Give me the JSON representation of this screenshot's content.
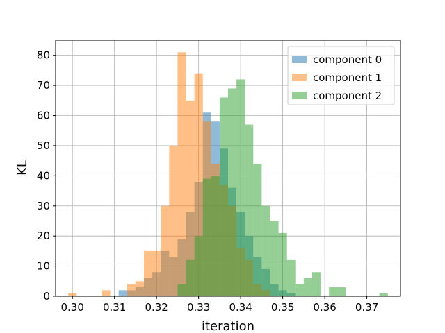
{
  "chart_data": {
    "type": "histogram",
    "title": "",
    "xlabel": "iteration",
    "ylabel": "KL",
    "xlim": [
      0.296,
      0.378
    ],
    "ylim": [
      0,
      85
    ],
    "grid": true,
    "legend_placement": "top-right",
    "bin_width": 0.002,
    "x_ticks": [
      0.3,
      0.31,
      0.32,
      0.33,
      0.34,
      0.35,
      0.36,
      0.37
    ],
    "x_tick_labels": [
      "0.30",
      "0.31",
      "0.32",
      "0.33",
      "0.34",
      "0.35",
      "0.36",
      "0.37"
    ],
    "y_ticks": [
      0,
      10,
      20,
      30,
      40,
      50,
      60,
      70,
      80
    ],
    "y_tick_labels": [
      "0",
      "10",
      "20",
      "30",
      "40",
      "50",
      "60",
      "70",
      "80"
    ],
    "series": [
      {
        "name": "component 0",
        "color": "#1f77b4",
        "opacity": 0.5,
        "bins": [
          [
            0.311,
            2
          ],
          [
            0.313,
            2
          ],
          [
            0.315,
            3
          ],
          [
            0.317,
            6
          ],
          [
            0.319,
            8
          ],
          [
            0.321,
            15
          ],
          [
            0.323,
            13
          ],
          [
            0.325,
            19
          ],
          [
            0.327,
            28
          ],
          [
            0.329,
            38
          ],
          [
            0.331,
            61
          ],
          [
            0.333,
            58
          ],
          [
            0.335,
            49
          ],
          [
            0.337,
            36
          ],
          [
            0.339,
            28
          ],
          [
            0.341,
            20
          ],
          [
            0.343,
            13
          ],
          [
            0.345,
            9
          ],
          [
            0.347,
            4
          ],
          [
            0.349,
            2
          ],
          [
            0.351,
            1
          ]
        ]
      },
      {
        "name": "component 1",
        "color": "#ff7f0e",
        "opacity": 0.5,
        "bins": [
          [
            0.299,
            1
          ],
          [
            0.307,
            2
          ],
          [
            0.313,
            4
          ],
          [
            0.315,
            5
          ],
          [
            0.317,
            15
          ],
          [
            0.319,
            15
          ],
          [
            0.321,
            30
          ],
          [
            0.323,
            50
          ],
          [
            0.325,
            81
          ],
          [
            0.327,
            65
          ],
          [
            0.329,
            74
          ],
          [
            0.331,
            58
          ],
          [
            0.333,
            44
          ],
          [
            0.335,
            37
          ],
          [
            0.337,
            30
          ],
          [
            0.339,
            16
          ],
          [
            0.341,
            12
          ],
          [
            0.343,
            4
          ],
          [
            0.345,
            2
          ]
        ]
      },
      {
        "name": "component 2",
        "color": "#2ca02c",
        "opacity": 0.5,
        "bins": [
          [
            0.325,
            4
          ],
          [
            0.327,
            12
          ],
          [
            0.329,
            20
          ],
          [
            0.331,
            39
          ],
          [
            0.333,
            40
          ],
          [
            0.335,
            66
          ],
          [
            0.337,
            69
          ],
          [
            0.339,
            72
          ],
          [
            0.341,
            57
          ],
          [
            0.343,
            44
          ],
          [
            0.345,
            30
          ],
          [
            0.347,
            25
          ],
          [
            0.349,
            21
          ],
          [
            0.351,
            12
          ],
          [
            0.353,
            4
          ],
          [
            0.355,
            6
          ],
          [
            0.357,
            8
          ],
          [
            0.359,
            0
          ],
          [
            0.361,
            3
          ],
          [
            0.363,
            3
          ],
          [
            0.373,
            1
          ]
        ]
      }
    ]
  }
}
